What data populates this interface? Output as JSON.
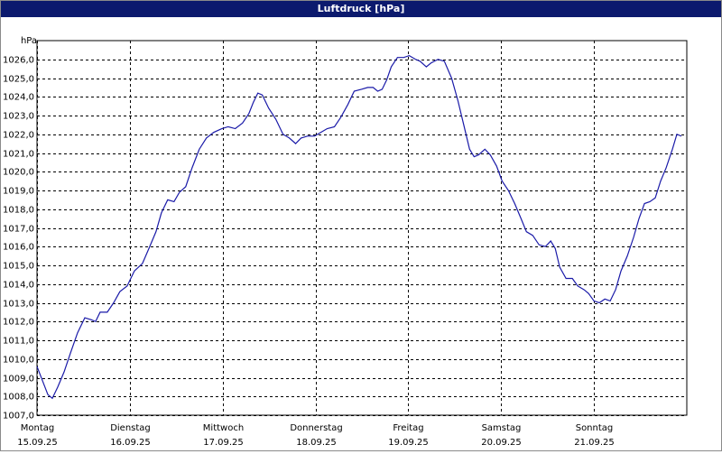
{
  "chart_data": {
    "type": "line",
    "title": "Luftdruck [hPa]",
    "y_label": "hPa",
    "color": "#1a1aa8",
    "grid": true,
    "xlim": [
      0,
      7
    ],
    "xticks": [
      {
        "value": 0,
        "label": "Montag"
      },
      {
        "value": 1,
        "label": "Dienstag"
      },
      {
        "value": 2,
        "label": "Mittwoch"
      },
      {
        "value": 3,
        "label": "Donnerstag"
      },
      {
        "value": 4,
        "label": "Freitag"
      },
      {
        "value": 5,
        "label": "Samstag"
      },
      {
        "value": 6,
        "label": "Sonntag"
      }
    ],
    "xtick_dates": [
      "15.09.25",
      "16.09.25",
      "17.09.25",
      "18.09.25",
      "19.09.25",
      "20.09.25",
      "21.09.25"
    ],
    "ylim": [
      1007,
      1027
    ],
    "yticks": [
      {
        "value": 1007,
        "label": "1007,0"
      },
      {
        "value": 1008,
        "label": "1008,0"
      },
      {
        "value": 1009,
        "label": "1009,0"
      },
      {
        "value": 1010,
        "label": "1010,0"
      },
      {
        "value": 1011,
        "label": "1011,0"
      },
      {
        "value": 1012,
        "label": "1012,0"
      },
      {
        "value": 1013,
        "label": "1013,0"
      },
      {
        "value": 1014,
        "label": "1014,0"
      },
      {
        "value": 1015,
        "label": "1015,0"
      },
      {
        "value": 1016,
        "label": "1016,0"
      },
      {
        "value": 1017,
        "label": "1017,0"
      },
      {
        "value": 1018,
        "label": "1018,0"
      },
      {
        "value": 1019,
        "label": "1019,0"
      },
      {
        "value": 1020,
        "label": "1020,0"
      },
      {
        "value": 1021,
        "label": "1021,0"
      },
      {
        "value": 1022,
        "label": "1022,0"
      },
      {
        "value": 1023,
        "label": "1023,0"
      },
      {
        "value": 1024,
        "label": "1024,0"
      },
      {
        "value": 1025,
        "label": "1025,0"
      },
      {
        "value": 1026,
        "label": "1026,0"
      }
    ],
    "x": [
      0,
      0.078,
      0.117,
      0.165,
      0.223,
      0.291,
      0.359,
      0.437,
      0.515,
      0.583,
      0.631,
      0.68,
      0.757,
      0.825,
      0.893,
      0.971,
      1.049,
      1.136,
      1.214,
      1.282,
      1.34,
      1.408,
      1.476,
      1.534,
      1.602,
      1.67,
      1.748,
      1.825,
      1.903,
      1.99,
      2.058,
      2.136,
      2.214,
      2.282,
      2.33,
      2.379,
      2.427,
      2.495,
      2.573,
      2.65,
      2.718,
      2.786,
      2.845,
      2.913,
      2.99,
      3.058,
      3.126,
      3.204,
      3.272,
      3.35,
      3.417,
      3.495,
      3.563,
      3.621,
      3.67,
      3.718,
      3.767,
      3.816,
      3.883,
      3.951,
      4.01,
      4.078,
      4.126,
      4.194,
      4.243,
      4.32,
      4.388,
      4.466,
      4.534,
      4.602,
      4.66,
      4.709,
      4.757,
      4.825,
      4.883,
      4.951,
      5.01,
      5.078,
      5.146,
      5.214,
      5.272,
      5.34,
      5.408,
      5.476,
      5.534,
      5.583,
      5.631,
      5.699,
      5.767,
      5.825,
      5.893,
      5.942,
      6.0,
      6.058,
      6.117,
      6.175,
      6.233,
      6.291,
      6.359,
      6.427,
      6.485,
      6.544,
      6.602,
      6.66,
      6.718,
      6.777,
      6.845,
      6.893,
      6.942
    ],
    "values": [
      1009.6,
      1008.6,
      1008.1,
      1007.9,
      1008.5,
      1009.3,
      1010.3,
      1011.4,
      1012.2,
      1012.1,
      1012.0,
      1012.5,
      1012.5,
      1013.0,
      1013.6,
      1013.9,
      1014.7,
      1015.1,
      1016.0,
      1016.8,
      1017.8,
      1018.5,
      1018.4,
      1018.9,
      1019.2,
      1020.2,
      1021.2,
      1021.8,
      1022.1,
      1022.3,
      1022.4,
      1022.3,
      1022.6,
      1023.1,
      1023.7,
      1024.2,
      1024.1,
      1023.4,
      1022.8,
      1022.0,
      1021.8,
      1021.5,
      1021.8,
      1021.9,
      1021.9,
      1022.1,
      1022.3,
      1022.4,
      1022.9,
      1023.6,
      1024.3,
      1024.4,
      1024.5,
      1024.5,
      1024.3,
      1024.4,
      1024.9,
      1025.6,
      1026.1,
      1026.1,
      1026.2,
      1026.0,
      1025.9,
      1025.6,
      1025.8,
      1026.0,
      1025.9,
      1025.0,
      1023.8,
      1022.4,
      1021.2,
      1020.8,
      1020.9,
      1021.2,
      1020.9,
      1020.3,
      1019.5,
      1019.0,
      1018.3,
      1017.5,
      1016.8,
      1016.6,
      1016.1,
      1016.0,
      1016.3,
      1015.9,
      1014.9,
      1014.3,
      1014.3,
      1013.9,
      1013.7,
      1013.5,
      1013.1,
      1013.0,
      1013.2,
      1013.1,
      1013.7,
      1014.7,
      1015.5,
      1016.5,
      1017.5,
      1018.3,
      1018.4,
      1018.6,
      1019.5,
      1020.2,
      1021.2,
      1022.0,
      1021.9
    ]
  }
}
